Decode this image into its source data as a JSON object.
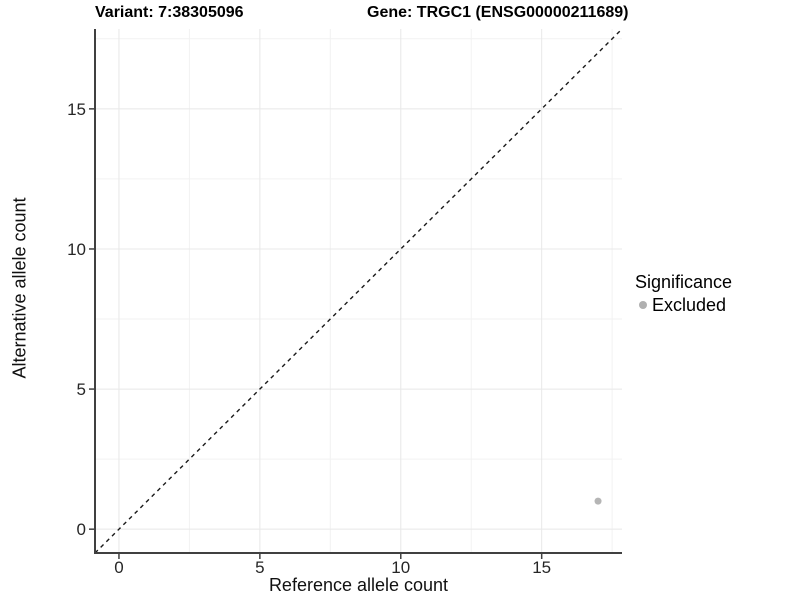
{
  "header": {
    "variant_title": "Variant: 7:38305096",
    "gene_title": "Gene: TRGC1 (ENSG00000211689)"
  },
  "chart_data": {
    "type": "scatter",
    "title": "Variant: 7:38305096   Gene: TRGC1 (ENSG00000211689)",
    "xlabel": "Reference allele count",
    "ylabel": "Alternative allele count",
    "xlim": [
      -0.85,
      17.85
    ],
    "ylim": [
      -0.85,
      17.85
    ],
    "x_ticks": [
      0,
      5,
      10,
      15
    ],
    "y_ticks": [
      0,
      5,
      10,
      15
    ],
    "x_minor_ticks": [
      2.5,
      7.5,
      12.5,
      17.5
    ],
    "y_minor_ticks": [
      2.5,
      7.5,
      12.5,
      17.5
    ],
    "grid": "major-and-minor",
    "identity_line": {
      "type": "dashed",
      "slope": 1,
      "intercept": 0,
      "color": "#1a1a1a"
    },
    "series": [
      {
        "name": "Excluded",
        "color": "#b5b5b5",
        "points": [
          {
            "x": 17,
            "y": 1
          }
        ]
      }
    ],
    "legend": {
      "title": "Significance",
      "position": "right",
      "entries": [
        {
          "label": "Excluded",
          "color": "#b0b0b0"
        }
      ]
    },
    "style": {
      "background": "#ffffff",
      "grid_major_color": "#e8e8e8",
      "grid_minor_color": "#f2f2f2",
      "axis_line_color": "#404040",
      "tick_label_color": "#262626",
      "point_radius": 3.5
    }
  }
}
